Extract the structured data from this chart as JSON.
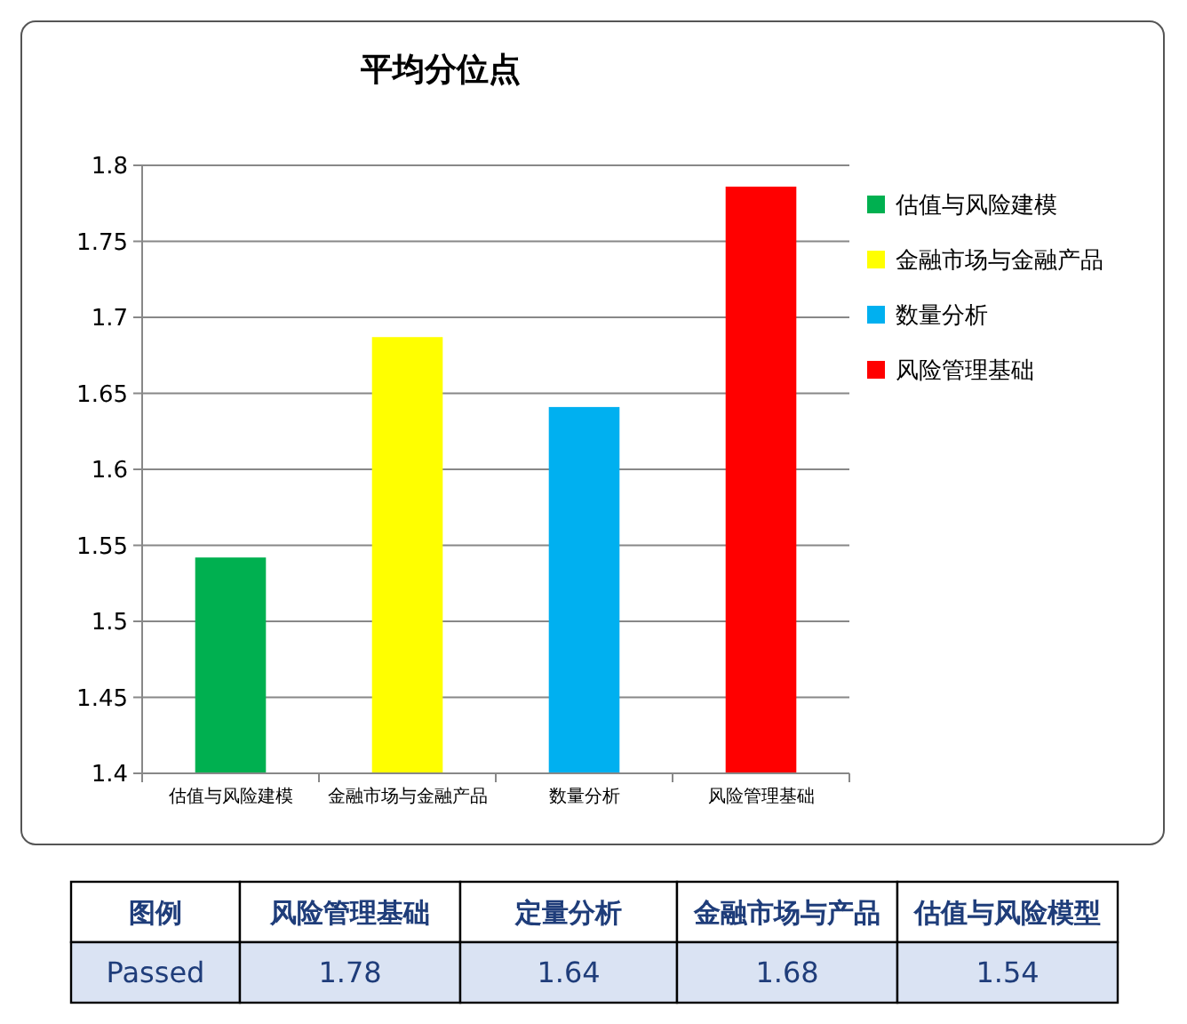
{
  "chart_data": [
    {
      "type": "bar",
      "title": "平均分位点",
      "categories": [
        "估值与风险建模",
        "金融市场与金融产品",
        "数量分析",
        "风险管理基础"
      ],
      "stacked": true,
      "series": [
        {
          "name": "估值与风险建模",
          "color": "#00b050",
          "values": [
            1.542,
            null,
            null,
            null
          ]
        },
        {
          "name": "金融市场与金融产品",
          "color": "#ffff00",
          "values": [
            null,
            1.687,
            null,
            null
          ]
        },
        {
          "name": "数量分析",
          "color": "#00b0f0",
          "values": [
            null,
            null,
            1.641,
            null
          ]
        },
        {
          "name": "风险管理基础",
          "color": "#ff0000",
          "values": [
            null,
            null,
            null,
            1.786
          ]
        }
      ],
      "ylim": [
        1.4,
        1.8
      ],
      "yticks": [
        1.4,
        1.45,
        1.5,
        1.55,
        1.6,
        1.65,
        1.7,
        1.75,
        1.8
      ],
      "grid": "y",
      "legend": "right"
    },
    {
      "type": "other",
      "annotations": [
        "图例",
        "风险管理基础",
        "定量分析",
        "金融市场与产品",
        "估值与风险模型",
        "Passed",
        "1.78",
        "1.64",
        "1.68",
        "1.54"
      ]
    }
  ]
}
